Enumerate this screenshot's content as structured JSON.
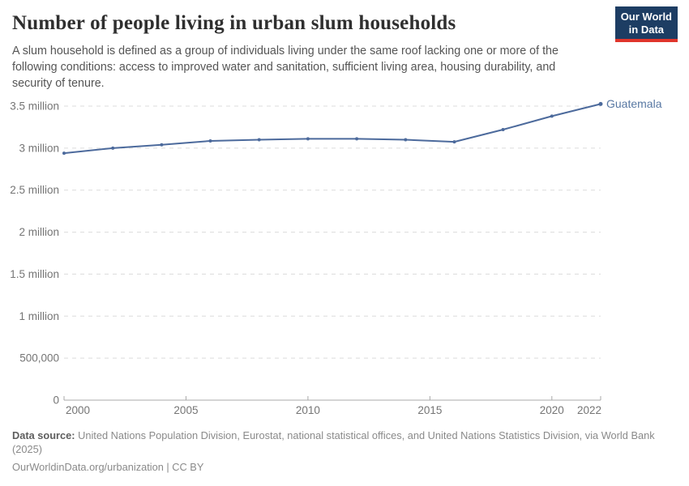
{
  "header": {
    "title": "Number of people living in urban slum households",
    "subtitle": "A slum household is defined as a group of individuals living under the same roof lacking one or more of the following conditions: access to improved water and sanitation, sufficient living area, housing durability, and security of tenure.",
    "logo": {
      "line1": "Our World",
      "line2": "in Data"
    }
  },
  "chart_data": {
    "type": "line",
    "title": "Number of people living in urban slum households",
    "x": [
      2000,
      2002,
      2004,
      2006,
      2008,
      2010,
      2012,
      2014,
      2016,
      2018,
      2020,
      2022
    ],
    "series": [
      {
        "name": "Guatemala",
        "color": "#4c6a9c",
        "values": [
          2940000,
          3000000,
          3040000,
          3085000,
          3100000,
          3110000,
          3110000,
          3100000,
          3075000,
          3220000,
          3380000,
          3525000
        ]
      }
    ],
    "x_ticks": [
      2000,
      2005,
      2010,
      2015,
      2020,
      2022
    ],
    "y_ticks": [
      {
        "value": 0,
        "label": "0"
      },
      {
        "value": 500000,
        "label": "500,000"
      },
      {
        "value": 1000000,
        "label": "1 million"
      },
      {
        "value": 1500000,
        "label": "1.5 million"
      },
      {
        "value": 2000000,
        "label": "2 million"
      },
      {
        "value": 2500000,
        "label": "2.5 million"
      },
      {
        "value": 3000000,
        "label": "3 million"
      },
      {
        "value": 3500000,
        "label": "3.5 million"
      }
    ],
    "xlim": [
      2000,
      2022
    ],
    "ylim": [
      0,
      3500000
    ],
    "grid": "horizontal-dashed",
    "legend": "end-of-line-label"
  },
  "colors": {
    "line": "#4c6a9c",
    "series_label": "#5878a3",
    "grid": "#dcdcdc",
    "axis": "#a9a9a9",
    "tick_label": "#757575",
    "logo_bg": "#1d3d63",
    "logo_stripe": "#e0352b"
  },
  "footer": {
    "source_label": "Data source:",
    "source_text": "United Nations Population Division, Eurostat, national statistical offices, and United Nations Statistics Division, via World Bank (2025)",
    "link_line": "OurWorldinData.org/urbanization | CC BY"
  }
}
